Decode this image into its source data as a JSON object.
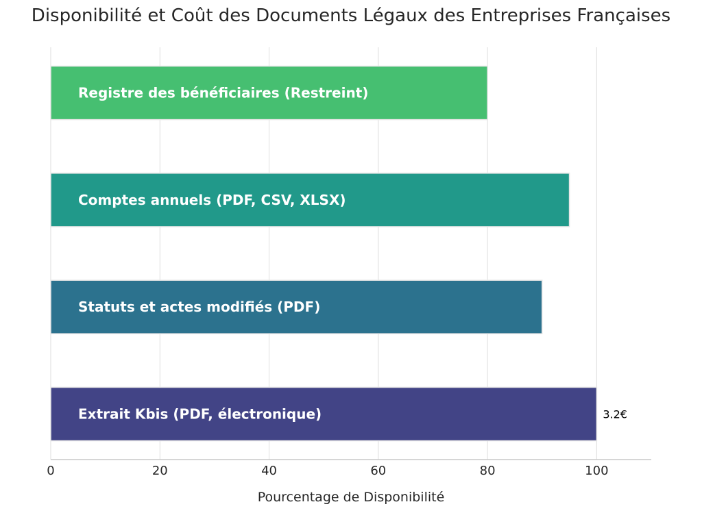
{
  "chart_data": {
    "type": "bar",
    "orientation": "horizontal",
    "title": "Disponibilité et Coût des Documents Légaux des Entreprises Françaises",
    "xlabel": "Pourcentage de Disponibilité",
    "ylabel": "",
    "xlim": [
      0,
      110
    ],
    "x_ticks": [
      "0",
      "20",
      "40",
      "60",
      "80",
      "100"
    ],
    "grid": "vertical",
    "categories": [
      "Extrait Kbis (PDF, électronique)",
      "Statuts et actes modifiés (PDF)",
      "Comptes annuels (PDF, CSV, XLSX)",
      "Registre des bénéficiaires (Restreint)"
    ],
    "values": [
      100,
      90,
      95,
      80
    ],
    "colors": [
      "#424486",
      "#2c728e",
      "#21998a",
      "#46bf71"
    ],
    "data_labels": [
      "3.2€",
      "",
      "",
      ""
    ]
  }
}
